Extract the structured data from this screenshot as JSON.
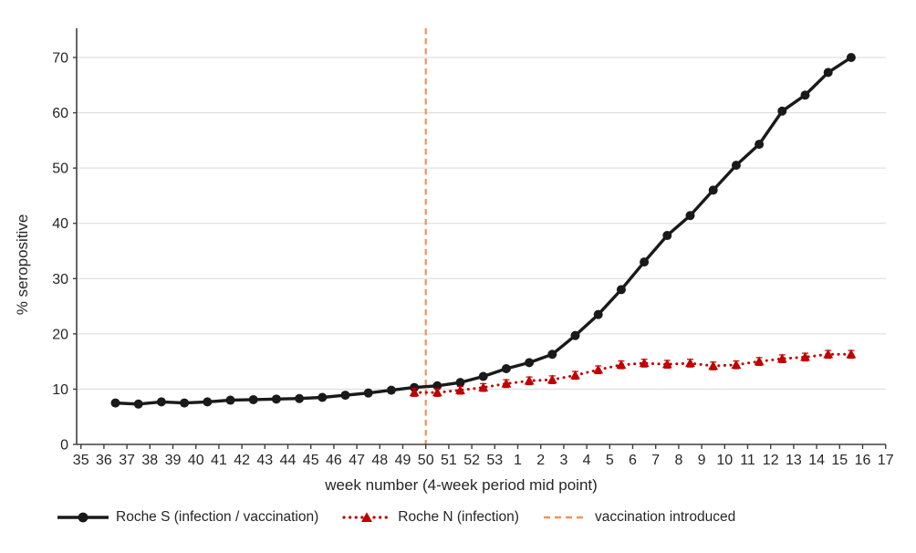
{
  "figure": {
    "background": "#ffffff"
  },
  "chart_data": {
    "type": "line",
    "title": "",
    "xlabel": "week number (4-week period mid point)",
    "ylabel": "% seropositive",
    "x_tick_labels": [
      "35",
      "36",
      "37",
      "38",
      "39",
      "40",
      "41",
      "42",
      "43",
      "44",
      "45",
      "46",
      "47",
      "48",
      "49",
      "50",
      "51",
      "52",
      "53",
      "1",
      "2",
      "3",
      "4",
      "5",
      "6",
      "7",
      "8",
      "9",
      "10",
      "11",
      "12",
      "13",
      "14",
      "15",
      "16",
      "17"
    ],
    "y_ticks": [
      0,
      10,
      20,
      30,
      40,
      50,
      60,
      70
    ],
    "ylim": [
      0,
      75
    ],
    "grid": "horizontal",
    "legend_position": "bottom",
    "axis_color": "#404040",
    "grid_color": "#d9d9d9",
    "tick_text_color": "#262626",
    "series": [
      {
        "name": "Roche S (infection / vaccination)",
        "color": "#1a1a1a",
        "marker": "circle",
        "line_style": "solid",
        "error": 0.5,
        "error_color": "#a6a6a6",
        "weeks": [
          36.5,
          37.5,
          38.5,
          39.5,
          40.5,
          41.5,
          42.5,
          43.5,
          44.5,
          45.5,
          46.5,
          47.5,
          48.5,
          49.5,
          50.5,
          51.5,
          52.5,
          53.5,
          1.5,
          2.5,
          3.5,
          4.5,
          5.5,
          6.5,
          7.5,
          8.5,
          9.5,
          10.5,
          11.5,
          12.5,
          13.5,
          14.5,
          15.5
        ],
        "values": [
          7.5,
          7.3,
          7.7,
          7.5,
          7.7,
          8.0,
          8.1,
          8.2,
          8.3,
          8.5,
          8.9,
          9.3,
          9.8,
          10.3,
          10.6,
          11.2,
          12.3,
          13.7,
          14.8,
          16.3,
          19.7,
          23.5,
          28.0,
          33.0,
          37.8,
          41.4,
          46.0,
          50.5,
          54.3,
          60.3,
          63.2,
          67.3,
          70.0
        ]
      },
      {
        "name": "Roche N (infection)",
        "color": "#c00000",
        "marker": "triangle",
        "line_style": "dotted",
        "error": 0.7,
        "error_color": "#c00000",
        "weeks": [
          49.5,
          50.5,
          51.5,
          52.5,
          53.5,
          1.5,
          2.5,
          3.5,
          4.5,
          5.5,
          6.5,
          7.5,
          8.5,
          9.5,
          10.5,
          11.5,
          12.5,
          13.5,
          14.5,
          15.5
        ],
        "values": [
          9.4,
          9.4,
          9.8,
          10.3,
          11.0,
          11.5,
          11.7,
          12.5,
          13.5,
          14.4,
          14.7,
          14.5,
          14.7,
          14.2,
          14.4,
          15.0,
          15.5,
          15.8,
          16.3,
          16.3
        ]
      }
    ],
    "vline": {
      "label": "vaccination introduced",
      "week": 50,
      "color": "#f0945a",
      "style": "dashed"
    }
  }
}
